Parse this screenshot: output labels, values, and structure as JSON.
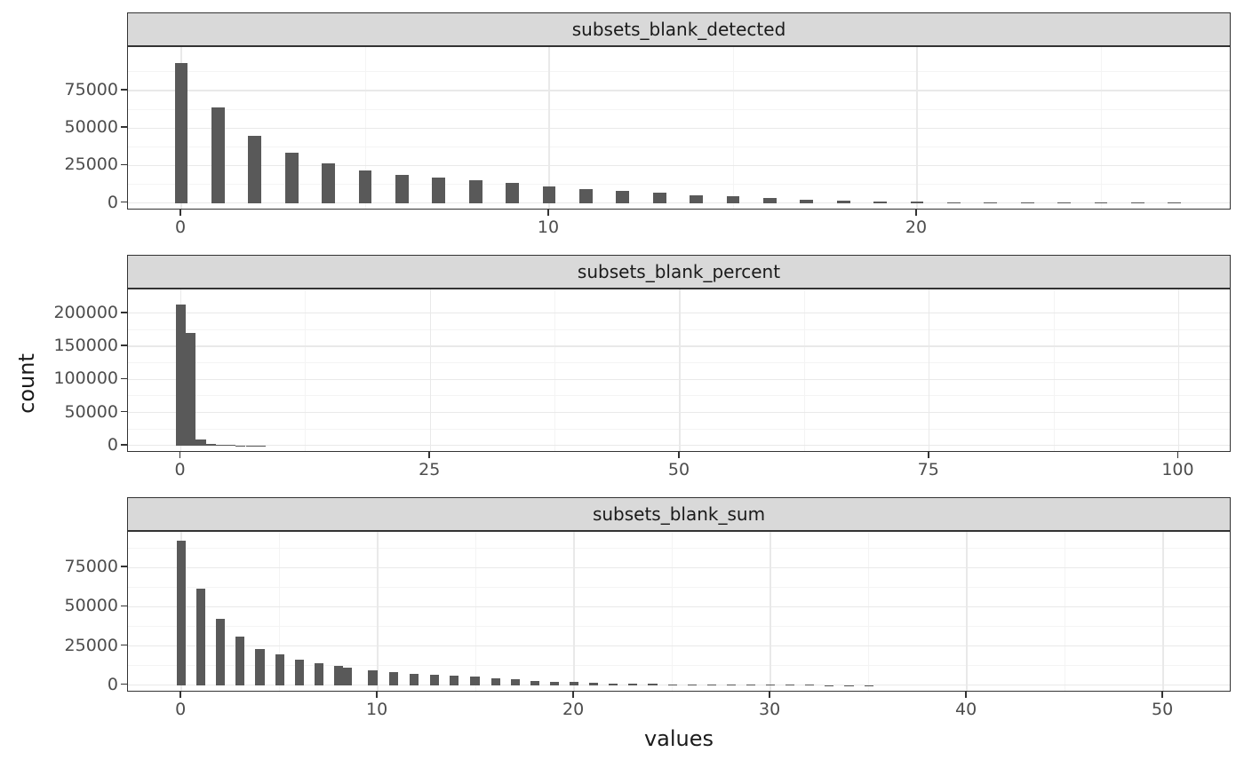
{
  "figure": {
    "xlabel": "values",
    "ylabel": "count"
  },
  "colors": {
    "bar": "#595959",
    "strip_bg": "#d9d9d9",
    "strip_border": "#333333",
    "panel_border": "#333333",
    "grid_major": "#e9e9e9",
    "grid_minor": "#f4f4f4",
    "tick_mark": "#333333",
    "axis_text": "#4d4d4d",
    "title_text": "#1a1a1a",
    "background": "#ffffff"
  },
  "chart_data": [
    {
      "type": "bar",
      "title": "subsets_blank_detected",
      "xlabel": "values",
      "ylabel": "count",
      "legend": "none",
      "grid": true,
      "x_ticks": [
        0,
        10,
        20
      ],
      "x_minor_ticks": [
        5,
        15,
        25
      ],
      "y_ticks": [
        0,
        25000,
        50000,
        75000
      ],
      "y_minor_ticks": [
        12500,
        37500,
        62500,
        87500
      ],
      "x_range": [
        -1.45,
        28.55
      ],
      "y_range": [
        -5000,
        104000
      ],
      "bar_width_units": 0.36,
      "bars": [
        [
          0,
          93500
        ],
        [
          1,
          64000
        ],
        [
          2,
          44800
        ],
        [
          3,
          33500
        ],
        [
          4,
          26200
        ],
        [
          5,
          21700
        ],
        [
          6,
          18900
        ],
        [
          7,
          16900
        ],
        [
          8,
          15000
        ],
        [
          9,
          13400
        ],
        [
          10,
          11200
        ],
        [
          11,
          9400
        ],
        [
          12,
          8000
        ],
        [
          13,
          6600
        ],
        [
          14,
          5200
        ],
        [
          15,
          4300
        ],
        [
          16,
          3100
        ],
        [
          17,
          2300
        ],
        [
          18,
          1550
        ],
        [
          19,
          1050
        ],
        [
          20,
          750
        ],
        [
          21,
          500
        ],
        [
          22,
          350
        ],
        [
          23,
          250
        ],
        [
          24,
          170
        ],
        [
          25,
          120
        ],
        [
          26,
          80
        ],
        [
          27,
          60
        ]
      ]
    },
    {
      "type": "bar",
      "title": "subsets_blank_percent",
      "xlabel": "values",
      "ylabel": "count",
      "legend": "none",
      "grid": true,
      "x_ticks": [
        0,
        25,
        50,
        75,
        100
      ],
      "x_minor_ticks": [
        12.5,
        37.5,
        62.5,
        87.5
      ],
      "y_ticks": [
        0,
        50000,
        100000,
        150000,
        200000
      ],
      "y_minor_ticks": [
        25000,
        75000,
        125000,
        175000
      ],
      "x_range": [
        -5.3,
        105.3
      ],
      "y_range": [
        -11000,
        236000
      ],
      "bar_width_units": 1.0,
      "bars": [
        [
          0,
          213000
        ],
        [
          1,
          170500
        ],
        [
          2,
          8500
        ],
        [
          3,
          2000
        ],
        [
          4,
          1000
        ],
        [
          5,
          600
        ],
        [
          6,
          350
        ],
        [
          7,
          220
        ],
        [
          8,
          150
        ],
        [
          9,
          100
        ],
        [
          10,
          70
        ]
      ]
    },
    {
      "type": "bar",
      "title": "subsets_blank_sum",
      "xlabel": "values",
      "ylabel": "count",
      "legend": "none",
      "grid": true,
      "x_ticks": [
        0,
        10,
        20,
        30,
        40,
        50
      ],
      "x_minor_ticks": [
        5,
        15,
        25,
        35,
        45
      ],
      "y_ticks": [
        0,
        25000,
        50000,
        75000
      ],
      "y_minor_ticks": [
        12500,
        37500,
        62500,
        87500
      ],
      "x_range": [
        -2.72,
        53.48
      ],
      "y_range": [
        -4700,
        97800
      ],
      "bar_width_units": 0.46,
      "bars": [
        [
          0,
          92000
        ],
        [
          1,
          61500
        ],
        [
          2,
          42500
        ],
        [
          3,
          31000
        ],
        [
          4,
          23300
        ],
        [
          5,
          19400
        ],
        [
          6,
          16100
        ],
        [
          7,
          13900
        ],
        [
          8,
          12100
        ],
        [
          8.45,
          11000
        ],
        [
          9.75,
          9500
        ],
        [
          10.8,
          8400
        ],
        [
          11.85,
          7400
        ],
        [
          12.9,
          6600
        ],
        [
          13.9,
          5900
        ],
        [
          14.95,
          5300
        ],
        [
          16,
          4400
        ],
        [
          17,
          3600
        ],
        [
          18,
          2900
        ],
        [
          19,
          2300
        ],
        [
          20,
          1850
        ],
        [
          21,
          1500
        ],
        [
          22,
          1200
        ],
        [
          23,
          950
        ],
        [
          24,
          780
        ],
        [
          25,
          620
        ],
        [
          26,
          500
        ],
        [
          27,
          400
        ],
        [
          28,
          330
        ],
        [
          29,
          260
        ],
        [
          30,
          210
        ],
        [
          31,
          170
        ],
        [
          32,
          140
        ],
        [
          33,
          110
        ],
        [
          34,
          90
        ],
        [
          35,
          70
        ]
      ]
    }
  ]
}
